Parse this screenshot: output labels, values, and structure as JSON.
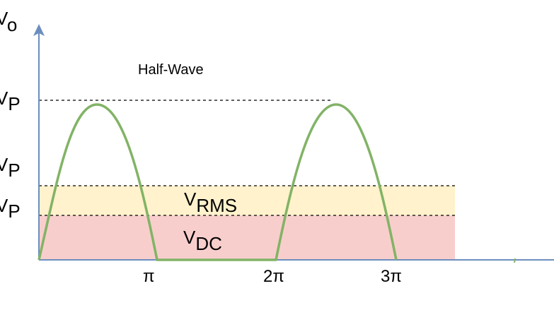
{
  "title": "Half-Wave",
  "y_axis_label": {
    "main": "V",
    "sub": "o"
  },
  "level_labels": [
    {
      "main": "V",
      "sub": "P"
    },
    {
      "main": "V",
      "sub": "P"
    },
    {
      "main": "V",
      "sub": "P"
    }
  ],
  "bands": [
    {
      "main": "V",
      "sub": "RMS",
      "color": "#fff2cc"
    },
    {
      "main": "V",
      "sub": "DC",
      "color": "#f8cecc"
    }
  ],
  "x_ticks": [
    "π",
    "2π",
    "3π"
  ],
  "colors": {
    "axis": "#6c8ebf",
    "waveform": "#82b366",
    "dashed": "#000000"
  }
}
